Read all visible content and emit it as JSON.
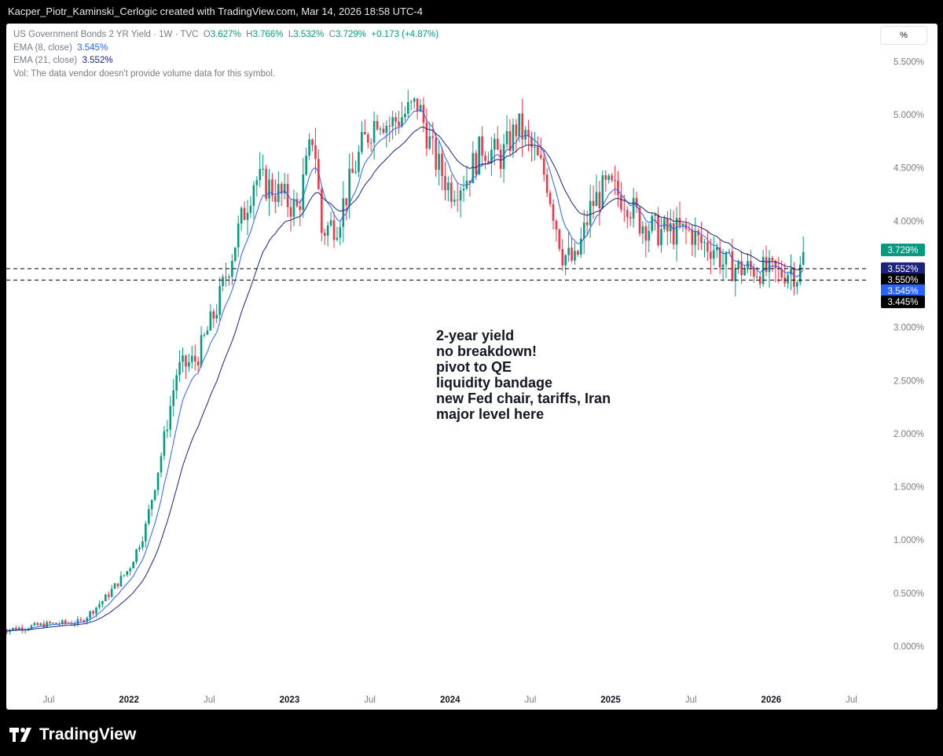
{
  "header": {
    "text": "Kacper_Piotr_Kaminski_Cerlogic created with TradingView.com, Mar 14, 2026 18:58 UTC-4"
  },
  "legend": {
    "symbol": "US Government Bonds 2 YR Yield · 1W · TVC",
    "o_label": "O",
    "o": "3.627%",
    "h_label": "H",
    "h": "3.766%",
    "l_label": "L",
    "l": "3.532%",
    "c_label": "C",
    "c": "3.729%",
    "change": "+0.173 (+4.87%)",
    "ema8_label": "EMA (8, close)",
    "ema8": "3.545%",
    "ema21_label": "EMA (21, close)",
    "ema21": "3.552%",
    "vol": "Vol: The data vendor doesn't provide volume data for this symbol."
  },
  "scale_button": "%",
  "annotation": [
    "2-year yield",
    "no breakdown!",
    "",
    "pivot to QE",
    "liquidity bandage",
    "new Fed chair, tariffs, Iran",
    "",
    "major level here"
  ],
  "brand": "TradingView",
  "colors": {
    "up": "#089981",
    "down": "#f23645",
    "ema8": "#2962ff",
    "ema21": "#1a237e",
    "text": "#131722",
    "axis": "#787b86"
  },
  "chart_data": {
    "type": "line",
    "y_ticks": [
      "5.500%",
      "5.000%",
      "4.500%",
      "4.000%",
      "3.500%",
      "3.000%",
      "2.500%",
      "2.000%",
      "1.500%",
      "1.000%",
      "0.500%",
      "0.000%"
    ],
    "y_tick_values": [
      5.5,
      5.0,
      4.5,
      4.0,
      3.5,
      3.0,
      2.5,
      2.0,
      1.5,
      1.0,
      0.5,
      0.0
    ],
    "ylim": [
      -0.15,
      5.8
    ],
    "x_ticks": [
      {
        "label": "Jul",
        "t": 2021.5,
        "bold": false
      },
      {
        "label": "2022",
        "t": 2022.0,
        "bold": true
      },
      {
        "label": "Jul",
        "t": 2022.5,
        "bold": false
      },
      {
        "label": "2023",
        "t": 2023.0,
        "bold": true
      },
      {
        "label": "Jul",
        "t": 2023.5,
        "bold": false
      },
      {
        "label": "2024",
        "t": 2024.0,
        "bold": true
      },
      {
        "label": "Jul",
        "t": 2024.5,
        "bold": false
      },
      {
        "label": "2025",
        "t": 2025.0,
        "bold": true
      },
      {
        "label": "Jul",
        "t": 2025.5,
        "bold": false
      },
      {
        "label": "2026",
        "t": 2026.0,
        "bold": true
      },
      {
        "label": "Jul",
        "t": 2026.5,
        "bold": false
      }
    ],
    "xlim": [
      2021.2,
      2026.85
    ],
    "path_anchors": [
      [
        2021.2,
        0.15
      ],
      [
        2021.5,
        0.21
      ],
      [
        2021.7,
        0.23
      ],
      [
        2021.85,
        0.45
      ],
      [
        2022.0,
        0.73
      ],
      [
        2022.1,
        1.1
      ],
      [
        2022.2,
        1.8
      ],
      [
        2022.3,
        2.6
      ],
      [
        2022.42,
        2.7
      ],
      [
        2022.55,
        3.2
      ],
      [
        2022.68,
        3.9
      ],
      [
        2022.78,
        4.4
      ],
      [
        2022.9,
        4.3
      ],
      [
        2023.05,
        4.1
      ],
      [
        2023.15,
        4.85
      ],
      [
        2023.2,
        3.9
      ],
      [
        2023.3,
        4.0
      ],
      [
        2023.45,
        4.7
      ],
      [
        2023.55,
        5.0
      ],
      [
        2023.62,
        4.9
      ],
      [
        2023.8,
        5.1
      ],
      [
        2023.9,
        4.6
      ],
      [
        2024.0,
        4.3
      ],
      [
        2024.1,
        4.4
      ],
      [
        2024.2,
        4.7
      ],
      [
        2024.32,
        4.6
      ],
      [
        2024.42,
        4.9
      ],
      [
        2024.5,
        4.7
      ],
      [
        2024.6,
        4.4
      ],
      [
        2024.7,
        3.7
      ],
      [
        2024.78,
        3.6
      ],
      [
        2024.88,
        4.15
      ],
      [
        2024.96,
        4.3
      ],
      [
        2025.0,
        4.3
      ],
      [
        2025.1,
        4.2
      ],
      [
        2025.18,
        4.0
      ],
      [
        2025.3,
        3.9
      ],
      [
        2025.4,
        3.9
      ],
      [
        2025.5,
        3.9
      ],
      [
        2025.55,
        3.8
      ],
      [
        2025.65,
        3.75
      ],
      [
        2025.7,
        3.6
      ],
      [
        2025.8,
        3.55
      ],
      [
        2025.9,
        3.55
      ],
      [
        2026.05,
        3.5
      ],
      [
        2026.12,
        3.55
      ],
      [
        2026.17,
        3.48
      ],
      [
        2026.21,
        3.73
      ]
    ],
    "lines": [
      {
        "label": "3.550%",
        "value": 3.55,
        "style": "dashed",
        "color": "#000000"
      }
    ],
    "price_labels": [
      {
        "label": "3.729%",
        "value": 3.729,
        "bg": "#089981",
        "fg": "#ffffff"
      },
      {
        "label": "3.552%",
        "value": 3.552,
        "bg": "#1a237e",
        "fg": "#ffffff"
      },
      {
        "label": "3.550%",
        "value": 3.448,
        "bg": "#000000",
        "fg": "#ffffff"
      },
      {
        "label": "3.545%",
        "value": 3.345,
        "bg": "#2962ff",
        "fg": "#ffffff"
      },
      {
        "label": "3.445%",
        "value": 3.24,
        "bg": "#000000",
        "fg": "#ffffff"
      }
    ],
    "dashed_levels": [
      3.552,
      3.445
    ]
  }
}
